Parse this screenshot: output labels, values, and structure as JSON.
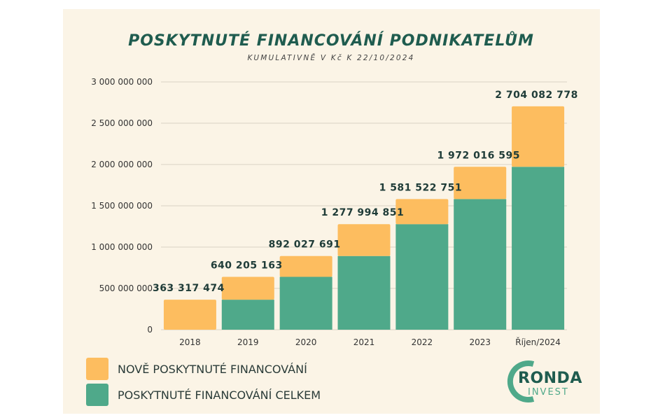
{
  "colors": {
    "new_funding": "#fdbd5f",
    "total_funding": "#4fa98a",
    "background": "#fbf4e6"
  },
  "chart_data": {
    "type": "bar",
    "stacked": true,
    "title": "POSKYTNUTÉ FINANCOVÁNÍ PODNIKATELŮM",
    "subtitle": "KUMULATIVNĚ V Kč K 22/10/2024",
    "categories": [
      "2018",
      "2019",
      "2020",
      "2021",
      "2022",
      "2023",
      "Říjen/2024"
    ],
    "series": [
      {
        "name": "POSKYTNUTÉ FINANCOVÁNÍ CELKEM",
        "color": "#4fa98a",
        "values": [
          0,
          363317474,
          640205163,
          892027691,
          1277994851,
          1581522751,
          1972016595
        ]
      },
      {
        "name": "NOVĚ POSKYTNUTÉ FINANCOVÁNÍ",
        "color": "#fdbd5f",
        "values": [
          363317474,
          276887689,
          251822528,
          385967160,
          303527900,
          390493844,
          732066183
        ]
      }
    ],
    "totals": [
      363317474,
      640205163,
      892027691,
      1277994851,
      1581522751,
      1972016595,
      2704082778
    ],
    "total_labels": [
      "363 317 474",
      "640 205 163",
      "892 027 691",
      "1 277 994 851",
      "1 581 522 751",
      "1 972 016 595",
      "2 704 082 778"
    ],
    "ylim": [
      0,
      3000000000
    ],
    "yticks": [
      0,
      500000000,
      1000000000,
      1500000000,
      2000000000,
      2500000000,
      3000000000
    ],
    "ytick_labels": [
      "0",
      "500 000 000",
      "1 000 000 000",
      "1 500 000 000",
      "2 000 000 000",
      "2 500 000 000",
      "3 000 000 000"
    ],
    "grid": true,
    "legend_position": "bottom-left"
  },
  "legend": {
    "new_label": "NOVĚ POSKYTNUTÉ FINANCOVÁNÍ",
    "total_label": "POSKYTNUTÉ FINANCOVÁNÍ CELKEM"
  },
  "logo": {
    "line1": "RONDA",
    "line2": "INVEST"
  }
}
